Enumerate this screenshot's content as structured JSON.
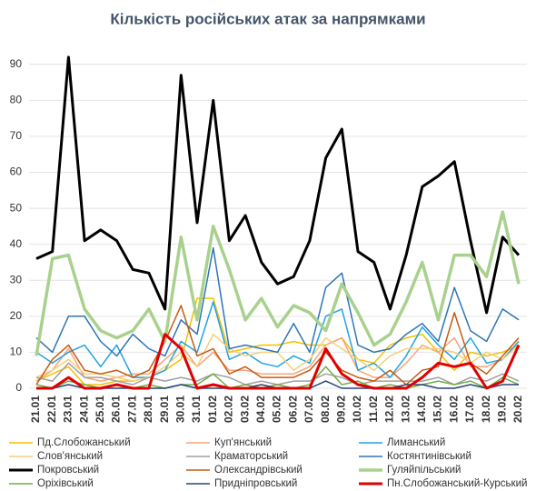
{
  "chart_data": {
    "type": "line",
    "title": "Кількість російських атак за напрямками",
    "categories": [
      "21.01",
      "22.01",
      "23.01",
      "24.01",
      "25.01",
      "26.01",
      "27.01",
      "28.01",
      "29.01",
      "30.01",
      "31.01",
      "01.02",
      "02.02",
      "03.02",
      "04.02",
      "05.02",
      "06.02",
      "07.02",
      "08.02",
      "09.02",
      "10.02",
      "11.02",
      "12.02",
      "13.02",
      "14.02",
      "15.02",
      "16.02",
      "17.02",
      "18.02",
      "19.02",
      "20.02"
    ],
    "ylim": [
      0,
      95
    ],
    "yticks": [
      0,
      10,
      20,
      30,
      40,
      50,
      60,
      70,
      80,
      90
    ],
    "grid": true,
    "series": [
      {
        "name": "Пд.Слобожанський",
        "color": "#f5c000",
        "line_width": 1.5,
        "values": [
          2,
          4,
          6,
          1,
          1,
          2,
          2,
          3,
          5,
          8,
          25,
          25,
          10,
          11,
          12,
          12,
          13,
          12,
          12,
          14,
          8,
          7,
          12,
          14,
          15,
          10,
          5,
          10,
          9,
          10,
          12
        ]
      },
      {
        "name": "Куп'янський",
        "color": "#f4a57c",
        "line_width": 1.5,
        "values": [
          2,
          5,
          11,
          3,
          2,
          3,
          4,
          4,
          8,
          12,
          6,
          10,
          5,
          5,
          4,
          4,
          4,
          6,
          12,
          14,
          5,
          3,
          3,
          7,
          12,
          10,
          14,
          6,
          6,
          8,
          13
        ]
      },
      {
        "name": "Лиманський",
        "color": "#1fa3e0",
        "line_width": 1.5,
        "values": [
          10,
          7,
          10,
          12,
          6,
          12,
          3,
          3,
          5,
          13,
          10,
          24,
          8,
          10,
          7,
          6,
          9,
          7,
          20,
          22,
          5,
          7,
          3,
          9,
          17,
          12,
          8,
          14,
          7,
          8,
          13
        ]
      },
      {
        "name": "Слов'янський",
        "color": "#f6cf78",
        "line_width": 1.5,
        "values": [
          3,
          5,
          8,
          4,
          4,
          3,
          2,
          3,
          6,
          10,
          6,
          15,
          11,
          9,
          10,
          10,
          5,
          8,
          14,
          11,
          8,
          5,
          9,
          11,
          11,
          11,
          10,
          7,
          10,
          8,
          12
        ]
      },
      {
        "name": "Краматорський",
        "color": "#a0a0a0",
        "line_width": 1.5,
        "values": [
          3,
          2,
          7,
          3,
          3,
          2,
          1,
          3,
          2,
          3,
          2,
          4,
          3,
          1,
          2,
          1,
          2,
          2,
          4,
          3,
          1,
          2,
          2,
          2,
          2,
          3,
          1,
          3,
          2,
          4,
          2
        ]
      },
      {
        "name": "Костянтинівський",
        "color": "#2e75b6",
        "line_width": 1.5,
        "values": [
          14,
          10,
          20,
          20,
          13,
          9,
          15,
          11,
          9,
          19,
          15,
          39,
          11,
          12,
          11,
          10,
          18,
          10,
          28,
          32,
          12,
          10,
          11,
          15,
          18,
          13,
          28,
          16,
          13,
          22,
          19
        ]
      },
      {
        "name": "Покровський",
        "color": "#000000",
        "line_width": 3,
        "values": [
          36,
          38,
          92,
          41,
          44,
          41,
          33,
          32,
          22,
          87,
          46,
          80,
          41,
          48,
          35,
          29,
          31,
          41,
          64,
          72,
          38,
          35,
          22,
          37,
          56,
          59,
          63,
          41,
          21,
          42,
          37
        ]
      },
      {
        "name": "Олександрівський",
        "color": "#c55a11",
        "line_width": 1.5,
        "values": [
          1,
          8,
          12,
          5,
          4,
          5,
          3,
          5,
          13,
          23,
          9,
          11,
          4,
          6,
          3,
          3,
          3,
          5,
          10,
          5,
          3,
          2,
          5,
          1,
          5,
          6,
          21,
          7,
          4,
          9,
          14
        ]
      },
      {
        "name": "Гуляйпільський",
        "color": "#a9d18e",
        "line_width": 3.5,
        "values": [
          9,
          36,
          37,
          22,
          16,
          14,
          16,
          22,
          13,
          42,
          19,
          45,
          33,
          19,
          25,
          17,
          23,
          21,
          16,
          29,
          21,
          12,
          15,
          24,
          35,
          19,
          37,
          37,
          31,
          49,
          29
        ]
      },
      {
        "name": "Оріхівський",
        "color": "#70ad47",
        "line_width": 1.5,
        "values": [
          1,
          0,
          2,
          1,
          0,
          1,
          0,
          1,
          0,
          1,
          1,
          4,
          0,
          1,
          0,
          1,
          0,
          1,
          6,
          1,
          2,
          0,
          1,
          0,
          1,
          2,
          1,
          2,
          0,
          3,
          1
        ]
      },
      {
        "name": "Придніпровський",
        "color": "#264478",
        "line_width": 1.5,
        "values": [
          0,
          0,
          1,
          0,
          0,
          0,
          0,
          0,
          0,
          1,
          0,
          0,
          0,
          0,
          1,
          0,
          0,
          0,
          2,
          0,
          0,
          0,
          0,
          1,
          1,
          0,
          0,
          1,
          0,
          1,
          1
        ]
      },
      {
        "name": "Пн.Слобожанський-Курський",
        "color": "#e00000",
        "line_width": 3,
        "values": [
          0,
          0,
          3,
          0,
          0,
          1,
          0,
          0,
          15,
          11,
          0,
          1,
          0,
          0,
          0,
          0,
          0,
          0,
          11,
          4,
          1,
          0,
          0,
          0,
          3,
          7,
          6,
          7,
          0,
          2,
          12
        ]
      }
    ]
  }
}
